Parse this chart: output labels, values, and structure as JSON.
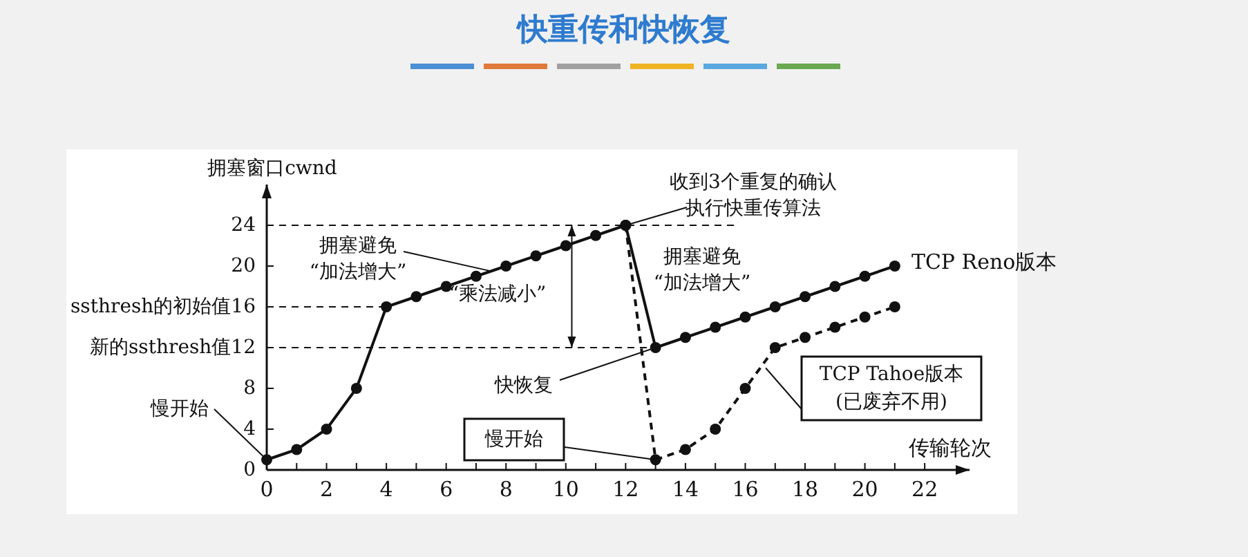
{
  "chart_data": {
    "type": "line",
    "title": "快重传和快恢复",
    "xlabel": "传输轮次",
    "ylabel": "拥塞窗口cwnd",
    "xlim": [
      0,
      23.5
    ],
    "ylim": [
      0,
      28
    ],
    "xticks": [
      0,
      {
        "value": 1,
        "label": null
      },
      2,
      {
        "value": 3,
        "label": null
      },
      4,
      {
        "value": 5,
        "label": null
      },
      6,
      {
        "value": 7,
        "label": null
      },
      8,
      {
        "value": 9,
        "label": null
      },
      10,
      {
        "value": 11,
        "label": null
      },
      12,
      {
        "value": 13,
        "label": null
      },
      14,
      {
        "value": 15,
        "label": null
      },
      16,
      {
        "value": 17,
        "label": null
      },
      18,
      {
        "value": 19,
        "label": null
      },
      20,
      {
        "value": 21,
        "label": null
      },
      22
    ],
    "yticks": [
      0,
      4,
      8,
      {
        "value": 12,
        "label": "新的ssthresh值12"
      },
      {
        "value": 16,
        "label": "ssthresh的初始值16"
      },
      20,
      24
    ],
    "marker": "circle",
    "grid": false,
    "series": [
      {
        "name": "TCP Reno版本",
        "color": "#111111",
        "line_style": "solid",
        "x": [
          0,
          1,
          2,
          3,
          4,
          5,
          6,
          7,
          8,
          9,
          10,
          11,
          12,
          13,
          14,
          15,
          16,
          17,
          18,
          19,
          20,
          21
        ],
        "values": [
          1,
          2,
          4,
          8,
          16,
          17,
          18,
          19,
          20,
          21,
          22,
          23,
          24,
          12,
          13,
          14,
          15,
          16,
          17,
          18,
          19,
          20
        ]
      },
      {
        "name": "TCP Tahoe版本",
        "color": "#111111",
        "line_style": "dashed",
        "x": [
          12,
          13,
          14,
          15,
          16,
          17,
          18,
          19,
          20,
          21
        ],
        "values": [
          24,
          1,
          2,
          4,
          8,
          12,
          13,
          14,
          15,
          16
        ]
      }
    ],
    "ref_lines": [
      {
        "axis": "y",
        "value": 24,
        "line_style": "dashed"
      },
      {
        "axis": "y",
        "value": 16,
        "line_style": "dashed"
      },
      {
        "axis": "y",
        "value": 12,
        "line_style": "dashed"
      }
    ],
    "annotations": [
      {
        "text": "慢开始",
        "x": 0,
        "y": 1
      },
      {
        "text": "拥塞避免",
        "x": 7.5,
        "y": 19.5
      },
      "“加法增大”",
      "“乘法减小”",
      {
        "text": "收到3个重复的确认",
        "x": 12,
        "y": 24
      },
      "执行快重传算法",
      "拥塞避免",
      "“加法增大”",
      {
        "text": "快恢复",
        "x": 13,
        "y": 12
      },
      {
        "text": "慢开始",
        "x": 13,
        "y": 1
      },
      "(已废弃不用)"
    ]
  }
}
